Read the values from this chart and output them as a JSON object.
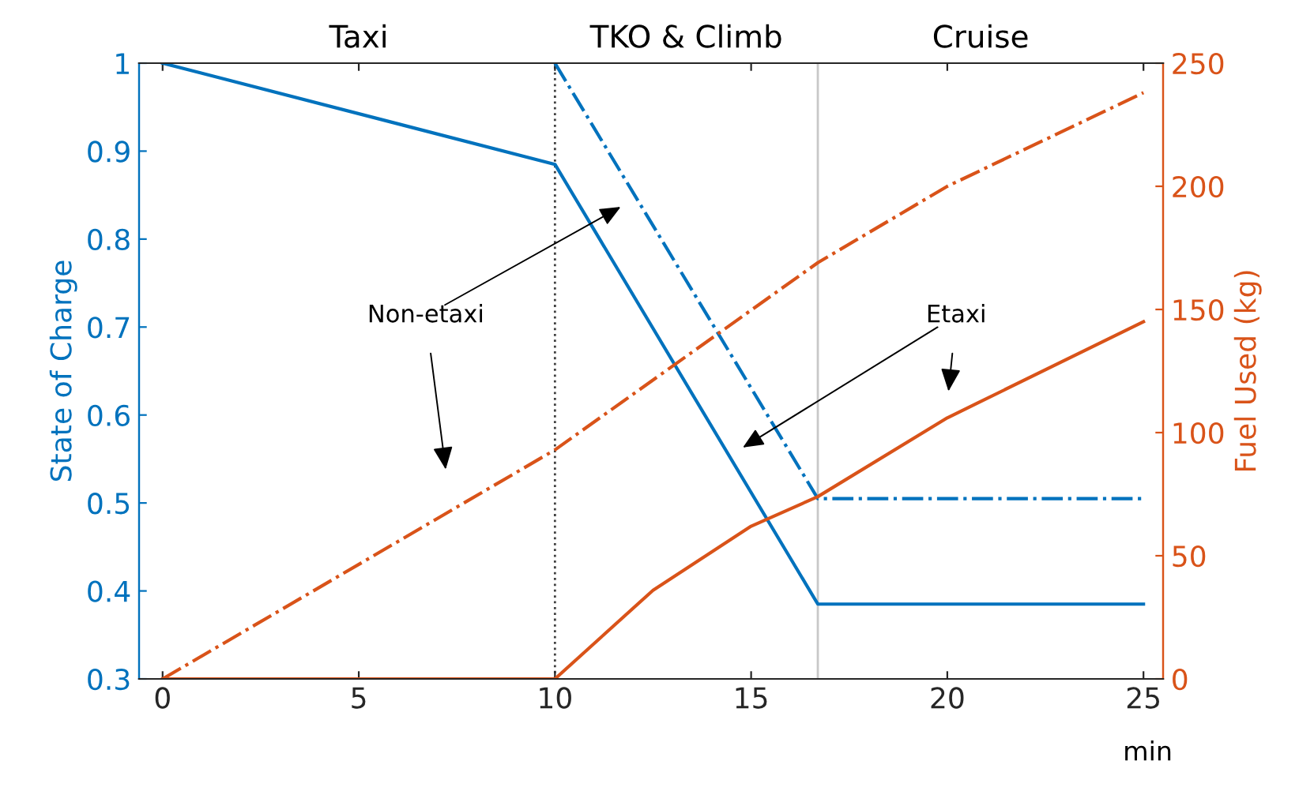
{
  "chart_data": {
    "type": "line",
    "xlabel": "min",
    "ylabel": "State of Charge",
    "y2label": "Fuel Used (kg)",
    "series": [
      {
        "color": "#0072bd",
        "line_style": "solid",
        "x": [
          0,
          10,
          16.7,
          25
        ],
        "values": [
          1,
          0.885,
          0.385,
          0.385
        ]
      },
      {
        "color": "#0072bd",
        "line_style": "dashdot",
        "x": [
          10,
          16.7,
          25
        ],
        "values": [
          1,
          0.505,
          0.505
        ]
      },
      {
        "axis": "y2",
        "color": "#d95319",
        "line_style": "dashdot",
        "x": [
          0,
          10,
          16.7,
          20,
          25
        ],
        "values": [
          0,
          93,
          169,
          200,
          238
        ]
      },
      {
        "axis": "y2",
        "color": "#d95319",
        "line_style": "solid",
        "x": [
          0,
          10,
          12.5,
          15,
          16.7,
          20,
          25
        ],
        "values": [
          0,
          0,
          36,
          62,
          74,
          106,
          145
        ]
      }
    ],
    "xlim": [
      -0.6,
      25.5
    ],
    "xticks": [
      0,
      5,
      10,
      15,
      20,
      25
    ],
    "ylim": [
      0.3,
      1
    ],
    "yticks": [
      0.3,
      0.4,
      0.5,
      0.6,
      0.7,
      0.8,
      0.9,
      1
    ],
    "y2lim": [
      0,
      250
    ],
    "y2ticks": [
      0,
      50,
      100,
      150,
      200,
      250
    ],
    "ref_lines": [
      {
        "axis": "x",
        "value": 10,
        "color": "#404040",
        "line_style": "dotted"
      },
      {
        "axis": "x",
        "value": 16.7,
        "color": "#c8c8c8",
        "line_style": "solid"
      }
    ],
    "annotations": [
      "Taxi",
      "TKO & Climb",
      "Cruise",
      "Non-etaxi",
      "Etaxi"
    ],
    "grid": false
  }
}
